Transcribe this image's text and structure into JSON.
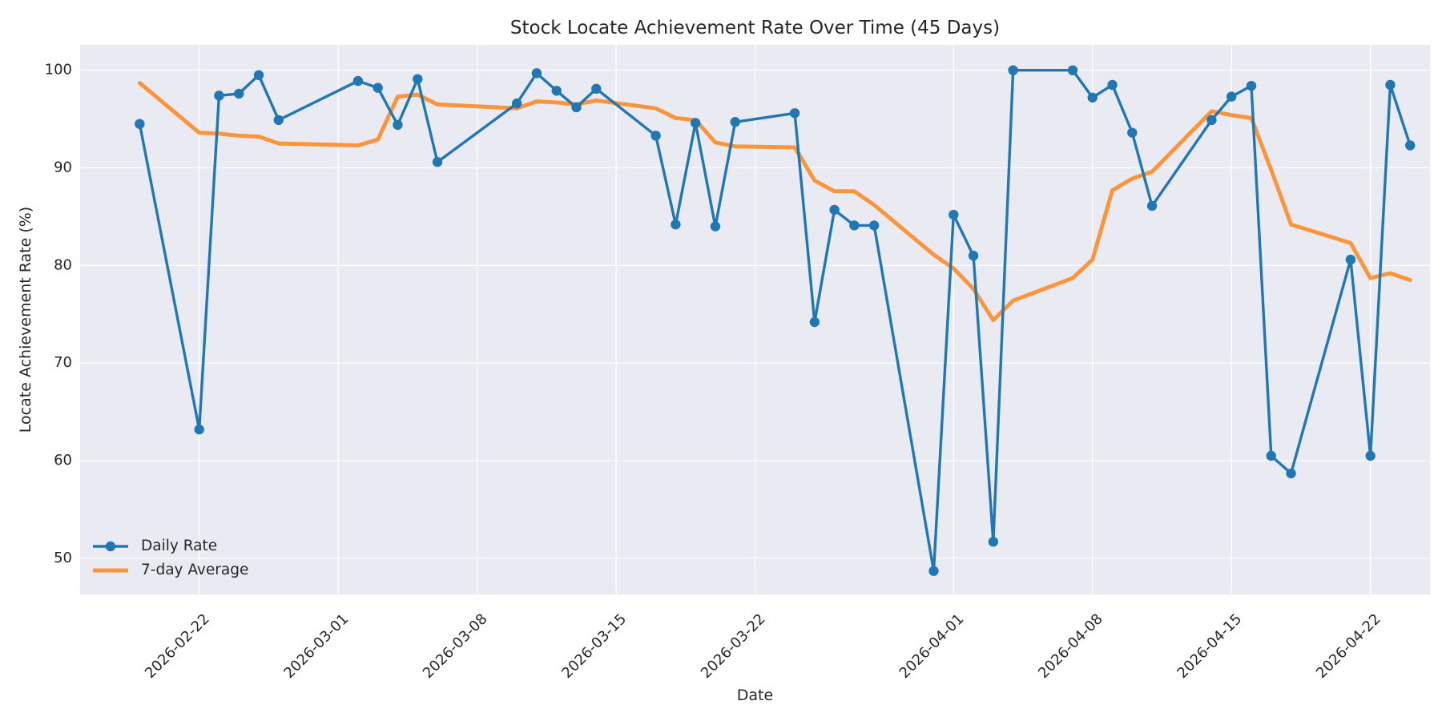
{
  "chart_data": {
    "type": "line",
    "title": "Stock Locate Achievement Rate Over Time (45 Days)",
    "xlabel": "Date",
    "ylabel": "Locate Achievement Rate (%)",
    "x_range": [
      "2026-02-16",
      "2026-04-25"
    ],
    "ylim": [
      46.3,
      102.6
    ],
    "grid": true,
    "legend_position": "lower-left",
    "x_ticks": [
      "2026-02-22",
      "2026-03-01",
      "2026-03-08",
      "2026-03-15",
      "2026-03-22",
      "2026-04-01",
      "2026-04-08",
      "2026-04-15",
      "2026-04-22"
    ],
    "y_ticks": [
      50,
      60,
      70,
      80,
      90,
      100
    ],
    "colors": {
      "daily": "#1f77b4",
      "average": "#ff7f0e",
      "plot_bg": "#eaeaf2",
      "grid": "#ffffff",
      "text": "#262626"
    },
    "series": [
      {
        "name": "Daily Rate",
        "style": "line-markers",
        "points": [
          [
            "2026-02-19",
            94.5
          ],
          [
            "2026-02-22",
            63.2
          ],
          [
            "2026-02-23",
            97.4
          ],
          [
            "2026-02-24",
            97.6
          ],
          [
            "2026-02-25",
            99.5
          ],
          [
            "2026-02-26",
            94.9
          ],
          [
            "2026-03-02",
            98.9
          ],
          [
            "2026-03-03",
            98.2
          ],
          [
            "2026-03-04",
            94.4
          ],
          [
            "2026-03-05",
            99.1
          ],
          [
            "2026-03-06",
            90.6
          ],
          [
            "2026-03-10",
            96.6
          ],
          [
            "2026-03-11",
            99.7
          ],
          [
            "2026-03-12",
            97.9
          ],
          [
            "2026-03-13",
            96.2
          ],
          [
            "2026-03-14",
            98.1
          ],
          [
            "2026-03-17",
            93.3
          ],
          [
            "2026-03-18",
            84.2
          ],
          [
            "2026-03-19",
            94.6
          ],
          [
            "2026-03-20",
            84.0
          ],
          [
            "2026-03-21",
            94.7
          ],
          [
            "2026-03-24",
            95.6
          ],
          [
            "2026-03-25",
            74.2
          ],
          [
            "2026-03-26",
            85.7
          ],
          [
            "2026-03-27",
            84.1
          ],
          [
            "2026-03-28",
            84.1
          ],
          [
            "2026-03-31",
            48.7
          ],
          [
            "2026-04-01",
            85.2
          ],
          [
            "2026-04-02",
            81.0
          ],
          [
            "2026-04-03",
            51.7
          ],
          [
            "2026-04-04",
            100.0
          ],
          [
            "2026-04-07",
            100.0
          ],
          [
            "2026-04-08",
            97.2
          ],
          [
            "2026-04-09",
            98.5
          ],
          [
            "2026-04-10",
            93.6
          ],
          [
            "2026-04-11",
            86.1
          ],
          [
            "2026-04-14",
            94.9
          ],
          [
            "2026-04-15",
            97.3
          ],
          [
            "2026-04-16",
            98.4
          ],
          [
            "2026-04-17",
            60.5
          ],
          [
            "2026-04-18",
            58.7
          ],
          [
            "2026-04-21",
            80.6
          ],
          [
            "2026-04-22",
            60.5
          ],
          [
            "2026-04-23",
            98.5
          ],
          [
            "2026-04-24",
            92.3
          ]
        ]
      },
      {
        "name": "7-day Average",
        "style": "line",
        "points": [
          [
            "2026-02-19",
            98.7
          ],
          [
            "2026-02-22",
            93.6
          ],
          [
            "2026-02-23",
            93.5
          ],
          [
            "2026-02-24",
            93.3
          ],
          [
            "2026-02-25",
            93.2
          ],
          [
            "2026-02-26",
            92.5
          ],
          [
            "2026-03-02",
            92.3
          ],
          [
            "2026-03-03",
            92.9
          ],
          [
            "2026-03-04",
            97.3
          ],
          [
            "2026-03-05",
            97.5
          ],
          [
            "2026-03-06",
            96.5
          ],
          [
            "2026-03-10",
            96.1
          ],
          [
            "2026-03-11",
            96.8
          ],
          [
            "2026-03-12",
            96.7
          ],
          [
            "2026-03-13",
            96.5
          ],
          [
            "2026-03-14",
            96.9
          ],
          [
            "2026-03-17",
            96.1
          ],
          [
            "2026-03-18",
            95.1
          ],
          [
            "2026-03-19",
            94.9
          ],
          [
            "2026-03-20",
            92.6
          ],
          [
            "2026-03-21",
            92.2
          ],
          [
            "2026-03-24",
            92.1
          ],
          [
            "2026-03-25",
            88.7
          ],
          [
            "2026-03-26",
            87.6
          ],
          [
            "2026-03-27",
            87.6
          ],
          [
            "2026-03-28",
            86.2
          ],
          [
            "2026-03-31",
            81.1
          ],
          [
            "2026-04-01",
            79.7
          ],
          [
            "2026-04-02",
            77.6
          ],
          [
            "2026-04-03",
            74.4
          ],
          [
            "2026-04-04",
            76.4
          ],
          [
            "2026-04-07",
            78.7
          ],
          [
            "2026-04-08",
            80.6
          ],
          [
            "2026-04-09",
            87.7
          ],
          [
            "2026-04-10",
            88.9
          ],
          [
            "2026-04-11",
            89.6
          ],
          [
            "2026-04-14",
            95.8
          ],
          [
            "2026-04-15",
            95.4
          ],
          [
            "2026-04-16",
            95.1
          ],
          [
            "2026-04-17",
            89.8
          ],
          [
            "2026-04-18",
            84.2
          ],
          [
            "2026-04-21",
            82.3
          ],
          [
            "2026-04-22",
            78.7
          ],
          [
            "2026-04-23",
            79.2
          ],
          [
            "2026-04-24",
            78.5
          ]
        ]
      }
    ]
  }
}
